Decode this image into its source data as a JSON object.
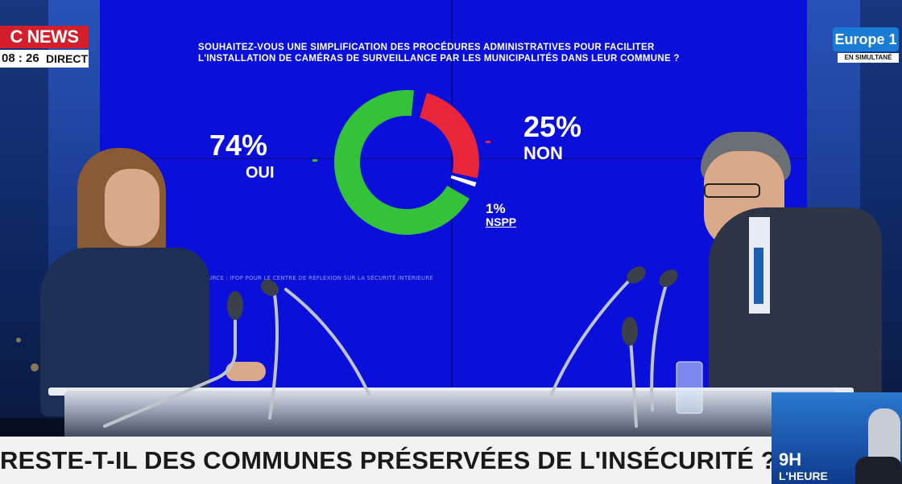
{
  "channel": {
    "logo_text": "C NEWS",
    "time": "08 : 26",
    "live_label": "DIRECT",
    "partner_logo": "Europe 1",
    "partner_badge": "EN SIMULTANÉ"
  },
  "poll": {
    "question": "SOUHAITEZ-VOUS UNE SIMPLIFICATION DES PROCÉDURES ADMINISTRATIVES POUR FACILITER L'INSTALLATION DE CAMÉRAS DE SURVEILLANCE PAR LES MUNICIPALITÉS DANS LEUR COMMUNE ?",
    "source": "SOURCE : IFOP POUR LE CENTRE DE RÉFLEXION SUR LA SÉCURITÉ INTÉRIEURE",
    "yes": {
      "pct_text": "74%",
      "label": "OUI",
      "value": 74,
      "color": "#34c23a"
    },
    "no": {
      "pct_text": "25%",
      "label": "NON",
      "value": 25,
      "color": "#e8253a"
    },
    "nspp": {
      "pct_text": "1%",
      "label": "NSPP",
      "value": 1,
      "color": "#ffffff"
    }
  },
  "banner": {
    "headline": "RESTE-T-IL DES COMMUNES PRÉSERVÉES DE L'INSÉCURITÉ ?",
    "promo_hour": "9H",
    "promo_label": "L'HEURE"
  },
  "colors": {
    "screen_blue": "#0a10d9",
    "cnews_red": "#d41e2b",
    "europe1_blue": "#1a7bd6"
  }
}
